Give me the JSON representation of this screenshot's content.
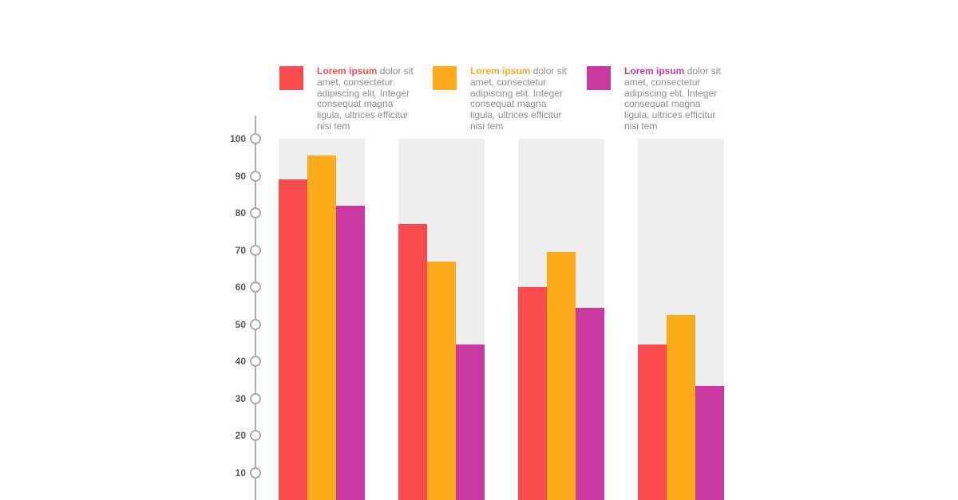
{
  "page": {
    "background": "#FFFFFF"
  },
  "legend": {
    "text_color": "#8E8E8E",
    "entries": [
      {
        "highlight": "Lorem ipsum",
        "text": "dolor sit amet, consectetur adipiscing elit. Integer consequat magna ligula, ultrices efficitur nisi tem",
        "color": "#FA4B4F"
      },
      {
        "highlight": "Lorem ipsum",
        "text": "dolor sit amet, consectetur adipiscing elit. Integer consequat magna ligula, ultrices efficitur nisi tem",
        "color": "#FCAC1B"
      },
      {
        "highlight": "Lorem ipsum",
        "text": "dolor sit amet, consectetur adipiscing elit. Integer consequat magna ligula, ultrices efficitur nisi tem",
        "color": "#C9399F"
      }
    ]
  },
  "axis": {
    "tick_labels": [
      "100",
      "90",
      "80",
      "70",
      "60",
      "50",
      "40",
      "30",
      "20",
      "10"
    ],
    "line_color": "#ACACAC",
    "label_color": "#58585B"
  },
  "chart_data": {
    "type": "bar",
    "categories": [
      "",
      "",
      "",
      ""
    ],
    "series": [
      {
        "name": "Lorem ipsum (red)",
        "color": "#FA4B4F",
        "values": [
          89,
          77,
          60,
          44.5
        ]
      },
      {
        "name": "Lorem ipsum (orange)",
        "color": "#FCAC1B",
        "values": [
          95.5,
          67,
          69.5,
          52.5
        ]
      },
      {
        "name": "Lorem ipsum (magenta)",
        "color": "#C9399F",
        "values": [
          82,
          44.5,
          54.5,
          33.5
        ]
      }
    ],
    "title": "",
    "xlabel": "",
    "ylabel": "",
    "ylim": [
      0,
      100
    ],
    "yticks": [
      100,
      90,
      80,
      70,
      60,
      50,
      40,
      30,
      20,
      10
    ],
    "grid": false,
    "legend_position": "top",
    "column_background": "#EFEFEF",
    "bars_cropped_at_bottom": true
  }
}
